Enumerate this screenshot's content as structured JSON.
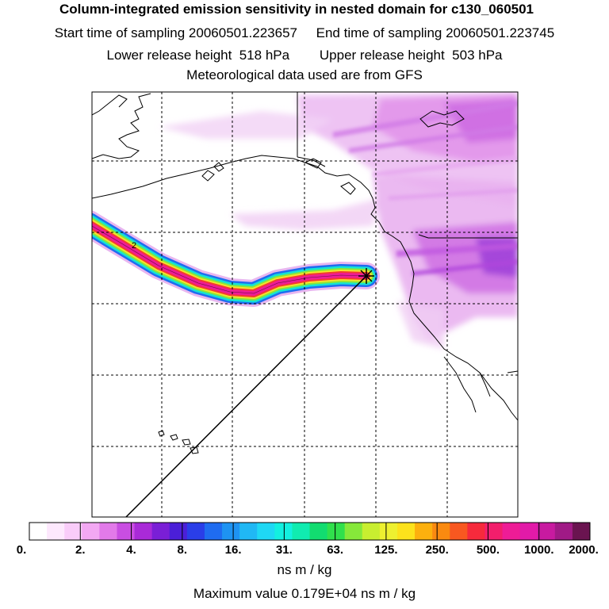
{
  "header": {
    "title": "Column-integrated emission sensitivity in nested domain for c130_060501",
    "sampling_line": "Start time of sampling 20060501.223657     End time of sampling 20060501.223745",
    "release_line": "Lower release height  518 hPa        Upper release height  503 hPa",
    "met_line": "Meteorological data used are from GFS"
  },
  "map": {
    "trajectory_label": "2",
    "release_marker": "release-point"
  },
  "colorbar": {
    "tick_labels": [
      "0.",
      "2.",
      "4.",
      "8.",
      "16.",
      "31.",
      "63.",
      "125.",
      "250.",
      "500.",
      "1000.",
      "2000."
    ],
    "colors": [
      "#ffffff",
      "#fde8fd",
      "#f9ccf9",
      "#f3a8f3",
      "#e27ae9",
      "#c94ee2",
      "#a92ad8",
      "#7a1fd6",
      "#4b1fd8",
      "#2a3ee8",
      "#1f6cf0",
      "#1e93f2",
      "#20b8f4",
      "#1fd8f4",
      "#13f0e0",
      "#10ecb0",
      "#12dc70",
      "#30e04c",
      "#86e83a",
      "#c8ee30",
      "#eef030",
      "#fce21c",
      "#fcb00e",
      "#fa8a10",
      "#f85820",
      "#f62a3c",
      "#f21e6c",
      "#ee1c96",
      "#e21aa8",
      "#c81aa0",
      "#a01a86",
      "#6a1450"
    ],
    "unit_label": "ns m / kg",
    "max_label": "Maximum value  0.179E+04 ns m / kg"
  }
}
